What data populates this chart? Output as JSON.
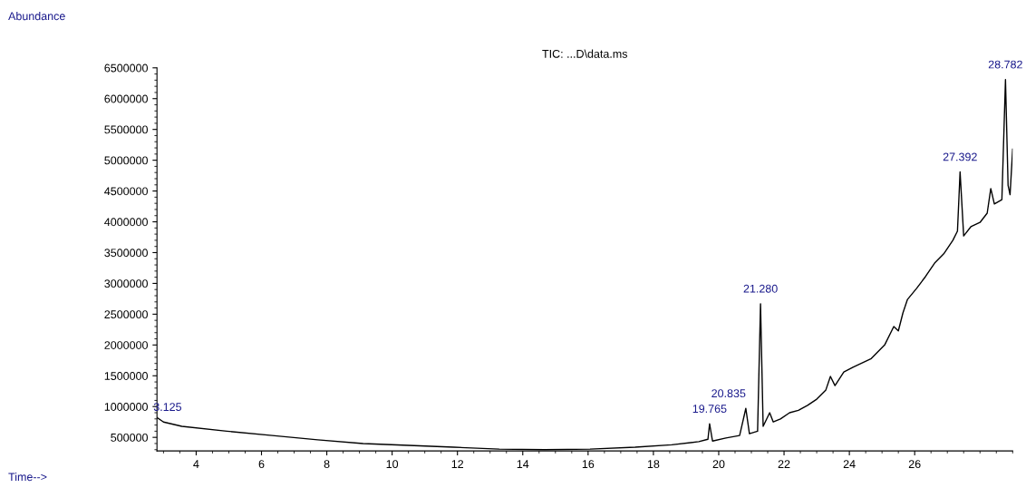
{
  "chart_data": {
    "type": "line",
    "title": "TIC: ...D\\data.ms",
    "x": [
      2.81,
      3.0,
      3.56,
      4.94,
      6.33,
      7.72,
      9.11,
      10.5,
      11.89,
      13.28,
      14.67,
      16.06,
      17.44,
      18.56,
      19.39,
      19.67,
      19.72,
      19.81,
      20.22,
      20.64,
      20.83,
      20.94,
      21.19,
      21.28,
      21.36,
      21.56,
      21.67,
      21.89,
      22.17,
      22.44,
      22.72,
      23.0,
      23.28,
      23.42,
      23.56,
      23.83,
      24.11,
      24.67,
      25.08,
      25.36,
      25.5,
      25.64,
      25.78,
      26.06,
      26.33,
      26.61,
      26.89,
      27.17,
      27.31,
      27.39,
      27.5,
      27.72,
      28.0,
      28.22,
      28.33,
      28.44,
      28.67,
      28.78,
      28.86,
      28.92,
      29.0
    ],
    "series": [
      {
        "color": "#000000",
        "values": [
          820000,
          750000,
          680000,
          600000,
          530000,
          460000,
          400000,
          370000,
          340000,
          310000,
          300000,
          310000,
          340000,
          380000,
          430000,
          470000,
          720000,
          440000,
          490000,
          530000,
          970000,
          560000,
          600000,
          2670000,
          680000,
          900000,
          750000,
          800000,
          900000,
          940000,
          1020000,
          1120000,
          1270000,
          1490000,
          1340000,
          1560000,
          1640000,
          1780000,
          2000000,
          2300000,
          2230000,
          2520000,
          2740000,
          2920000,
          3110000,
          3330000,
          3480000,
          3700000,
          3850000,
          4810000,
          3770000,
          3920000,
          3990000,
          4140000,
          4540000,
          4290000,
          4360000,
          6310000,
          4590000,
          4440000,
          5180000
        ]
      }
    ],
    "xlim": [
      2.8,
      29.0
    ],
    "xticks": [
      4,
      6,
      8,
      10,
      12,
      14,
      16,
      18,
      20,
      22,
      24,
      26
    ],
    "ylim": [
      280000,
      6500000
    ],
    "yticks": [
      500000,
      1000000,
      1500000,
      2000000,
      2500000,
      3000000,
      3500000,
      4000000,
      4500000,
      5000000,
      5500000,
      6000000,
      6500000
    ],
    "annotations": [
      "Abundance",
      "Time-->",
      {
        "text": "3.125",
        "x": 3.125,
        "y": 750000
      },
      {
        "text": "19.765",
        "x": 19.72,
        "y": 720000
      },
      {
        "text": "20.835",
        "x": 20.83,
        "y": 970000
      },
      {
        "text": "21.280",
        "x": 21.28,
        "y": 2670000
      },
      {
        "text": "27.392",
        "x": 27.39,
        "y": 4810000
      },
      {
        "text": "28.782",
        "x": 28.78,
        "y": 6310000
      }
    ],
    "grid": false,
    "legend": false
  }
}
